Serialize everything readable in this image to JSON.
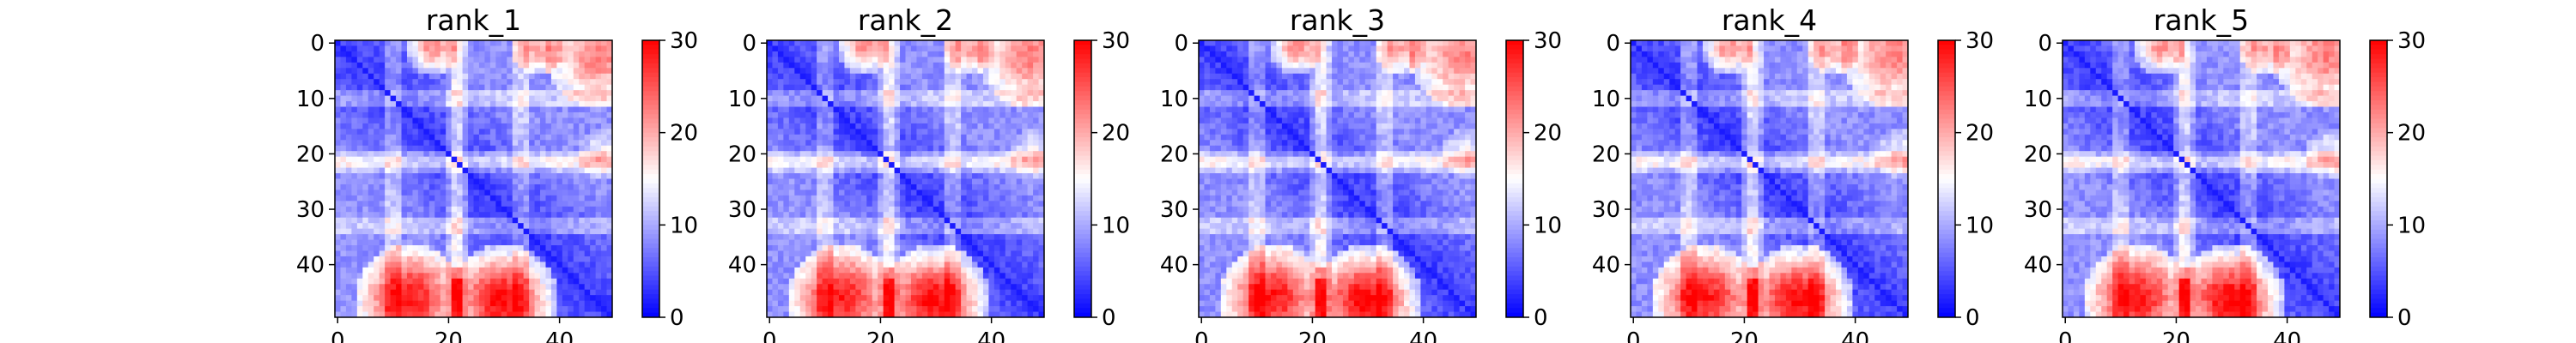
{
  "chart_data": [
    {
      "type": "heatmap",
      "title": "rank_1",
      "xlabel": "",
      "ylabel": "",
      "n": 50,
      "xticks": [
        0,
        20,
        40
      ],
      "yticks": [
        0,
        10,
        20,
        30,
        40
      ],
      "colorbar": {
        "ticks": [
          0,
          10,
          20,
          30
        ],
        "range": [
          0,
          30
        ],
        "colormap": "bwr"
      }
    },
    {
      "type": "heatmap",
      "title": "rank_2",
      "xlabel": "",
      "ylabel": "",
      "n": 50,
      "xticks": [
        0,
        20,
        40
      ],
      "yticks": [
        0,
        10,
        20,
        30,
        40
      ],
      "colorbar": {
        "ticks": [
          0,
          10,
          20,
          30
        ],
        "range": [
          0,
          30
        ],
        "colormap": "bwr"
      }
    },
    {
      "type": "heatmap",
      "title": "rank_3",
      "xlabel": "",
      "ylabel": "",
      "n": 50,
      "xticks": [
        0,
        20,
        40
      ],
      "yticks": [
        0,
        10,
        20,
        30,
        40
      ],
      "colorbar": {
        "ticks": [
          0,
          10,
          20,
          30
        ],
        "range": [
          0,
          30
        ],
        "colormap": "bwr"
      }
    },
    {
      "type": "heatmap",
      "title": "rank_4",
      "xlabel": "",
      "ylabel": "",
      "n": 50,
      "xticks": [
        0,
        20,
        40
      ],
      "yticks": [
        0,
        10,
        20,
        30,
        40
      ],
      "colorbar": {
        "ticks": [
          0,
          10,
          20,
          30
        ],
        "range": [
          0,
          30
        ],
        "colormap": "bwr"
      }
    },
    {
      "type": "heatmap",
      "title": "rank_5",
      "xlabel": "",
      "ylabel": "",
      "n": 50,
      "xticks": [
        0,
        20,
        40
      ],
      "yticks": [
        0,
        10,
        20,
        30,
        40
      ],
      "colorbar": {
        "ticks": [
          0,
          10,
          20,
          30
        ],
        "range": [
          0,
          30
        ],
        "colormap": "bwr"
      }
    }
  ],
  "colors": {
    "low": "#0000ff",
    "mid": "#ffffff",
    "high": "#ff0000"
  }
}
